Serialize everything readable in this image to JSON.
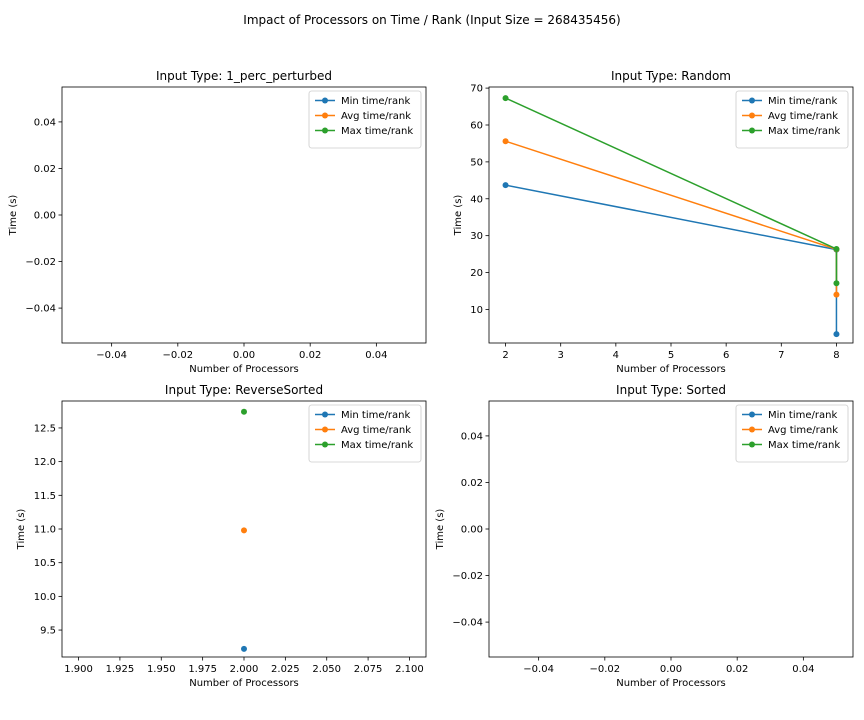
{
  "figure": {
    "title": "Impact of Processors on Time / Rank (Input Size = 268435456)"
  },
  "series_colors": {
    "Min time/rank": "#1f77b4",
    "Avg time/rank": "#ff7f0e",
    "Max time/rank": "#2ca02c"
  },
  "chart_data": [
    {
      "type": "line",
      "title": "Input Type: 1_perc_perturbed",
      "xlabel": "Number of Processors",
      "ylabel": "Time (s)",
      "xlim": [
        -0.055,
        0.055
      ],
      "ylim": [
        -0.055,
        0.055
      ],
      "xticks": [
        -0.04,
        -0.02,
        0.0,
        0.02,
        0.04
      ],
      "xtick_labels": [
        "−0.04",
        "−0.02",
        "0.00",
        "0.02",
        "0.04"
      ],
      "yticks": [
        -0.04,
        -0.02,
        0.0,
        0.02,
        0.04
      ],
      "ytick_labels": [
        "−0.04",
        "−0.02",
        "0.00",
        "0.02",
        "0.04"
      ],
      "legend": "top-right",
      "series": [
        {
          "name": "Min time/rank",
          "x": [],
          "y": []
        },
        {
          "name": "Avg time/rank",
          "x": [],
          "y": []
        },
        {
          "name": "Max time/rank",
          "x": [],
          "y": []
        }
      ]
    },
    {
      "type": "line",
      "title": "Input Type: Random",
      "xlabel": "Number of Processors",
      "ylabel": "Time (s)",
      "xlim": [
        1.7,
        8.3
      ],
      "ylim": [
        0.9,
        70.3
      ],
      "xticks": [
        2,
        3,
        4,
        5,
        6,
        7,
        8
      ],
      "xtick_labels": [
        "2",
        "3",
        "4",
        "5",
        "6",
        "7",
        "8"
      ],
      "yticks": [
        10,
        20,
        30,
        40,
        50,
        60,
        70
      ],
      "ytick_labels": [
        "10",
        "20",
        "30",
        "40",
        "50",
        "60",
        "70"
      ],
      "legend": "top-right",
      "series": [
        {
          "name": "Min time/rank",
          "x": [
            2,
            8,
            8
          ],
          "y": [
            43.7,
            26.2,
            3.3
          ]
        },
        {
          "name": "Avg time/rank",
          "x": [
            2,
            8,
            8
          ],
          "y": [
            55.6,
            26.3,
            14.0
          ]
        },
        {
          "name": "Max time/rank",
          "x": [
            2,
            8,
            8
          ],
          "y": [
            67.3,
            26.4,
            17.1
          ]
        }
      ]
    },
    {
      "type": "line",
      "title": "Input Type: ReverseSorted",
      "xlabel": "Number of Processors",
      "ylabel": "Time (s)",
      "xlim": [
        1.89,
        2.11
      ],
      "ylim": [
        9.1,
        12.9
      ],
      "xticks": [
        1.9,
        1.925,
        1.95,
        1.975,
        2.0,
        2.025,
        2.05,
        2.075,
        2.1
      ],
      "xtick_labels": [
        "1.900",
        "1.925",
        "1.950",
        "1.975",
        "2.000",
        "2.025",
        "2.050",
        "2.075",
        "2.100"
      ],
      "yticks": [
        9.5,
        10.0,
        10.5,
        11.0,
        11.5,
        12.0,
        12.5
      ],
      "ytick_labels": [
        "9.5",
        "10.0",
        "10.5",
        "11.0",
        "11.5",
        "12.0",
        "12.5"
      ],
      "legend": "top-right",
      "series": [
        {
          "name": "Min time/rank",
          "x": [
            2
          ],
          "y": [
            9.22
          ]
        },
        {
          "name": "Avg time/rank",
          "x": [
            2
          ],
          "y": [
            10.98
          ]
        },
        {
          "name": "Max time/rank",
          "x": [
            2
          ],
          "y": [
            12.74
          ]
        }
      ]
    },
    {
      "type": "line",
      "title": "Input Type: Sorted",
      "xlabel": "Number of Processors",
      "ylabel": "Time (s)",
      "xlim": [
        -0.055,
        0.055
      ],
      "ylim": [
        -0.055,
        0.055
      ],
      "xticks": [
        -0.04,
        -0.02,
        0.0,
        0.02,
        0.04
      ],
      "xtick_labels": [
        "−0.04",
        "−0.02",
        "0.00",
        "0.02",
        "0.04"
      ],
      "yticks": [
        -0.04,
        -0.02,
        0.0,
        0.02,
        0.04
      ],
      "ytick_labels": [
        "−0.04",
        "−0.02",
        "0.00",
        "0.02",
        "0.04"
      ],
      "legend": "top-right",
      "series": [
        {
          "name": "Min time/rank",
          "x": [],
          "y": []
        },
        {
          "name": "Avg time/rank",
          "x": [],
          "y": []
        },
        {
          "name": "Max time/rank",
          "x": [],
          "y": []
        }
      ]
    }
  ]
}
